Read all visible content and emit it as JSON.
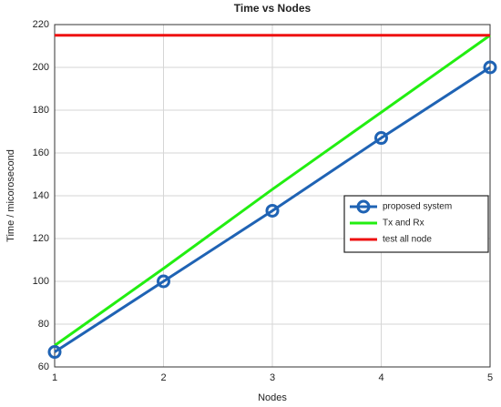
{
  "chart_data": {
    "type": "line",
    "title": "Time vs Nodes",
    "xlabel": "Nodes",
    "ylabel": "Time / micorosecond",
    "x": [
      1,
      2,
      3,
      4,
      5
    ],
    "series": [
      {
        "name": "proposed system",
        "color": "#1f63b4",
        "marker": "circle",
        "values": [
          67,
          100,
          133,
          167,
          200
        ]
      },
      {
        "name": "Tx and Rx",
        "color": "#22ee11",
        "marker": null,
        "values": [
          70,
          106,
          143,
          179,
          215
        ]
      },
      {
        "name": "test all node",
        "color": "#ee1111",
        "marker": null,
        "values": [
          215,
          215,
          215,
          215,
          215
        ]
      }
    ],
    "xlim": [
      1,
      5
    ],
    "xticks": [
      1,
      2,
      3,
      4,
      5
    ],
    "ylim": [
      60,
      220
    ],
    "yticks": [
      60,
      80,
      100,
      120,
      140,
      160,
      180,
      200,
      220
    ],
    "grid": true,
    "legend": "right"
  }
}
